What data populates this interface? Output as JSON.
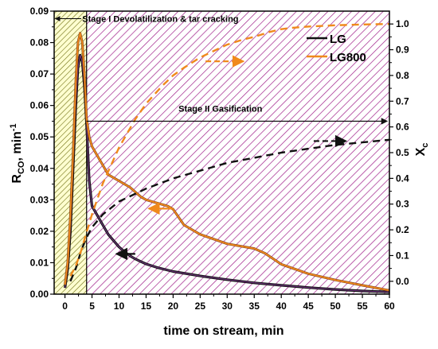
{
  "chart_data": {
    "type": "line",
    "xlabel": "time on stream, min",
    "ylabel_left": {
      "main": "R",
      "sub": "CO",
      "tail": ", min",
      "sup": "-1"
    },
    "ylabel_right": {
      "main": "X",
      "sub": "c"
    },
    "xlim": [
      -2,
      60
    ],
    "ylim_left": [
      0,
      0.09
    ],
    "ylim_right": [
      -0.05,
      1.05
    ],
    "x_ticks": [
      0,
      5,
      10,
      15,
      20,
      25,
      30,
      35,
      40,
      45,
      50,
      55,
      60
    ],
    "x_tick_labels": [
      "0",
      "5",
      "10",
      "15",
      "20",
      "25",
      "30",
      "35",
      "40",
      "45",
      "50",
      "55",
      "60"
    ],
    "y_left_ticks": [
      0,
      0.01,
      0.02,
      0.03,
      0.04,
      0.05,
      0.06,
      0.07,
      0.08,
      0.09
    ],
    "y_left_tick_labels": [
      "0.00",
      "0.01",
      "0.02",
      "0.03",
      "0.04",
      "0.05",
      "0.06",
      "0.07",
      "0.08",
      "0.09"
    ],
    "y_right_ticks": [
      0,
      0.1,
      0.2,
      0.3,
      0.4,
      0.5,
      0.6,
      0.7,
      0.8,
      0.9,
      1.0
    ],
    "y_right_tick_labels": [
      "0.0",
      "0.1",
      "0.2",
      "0.3",
      "0.4",
      "0.5",
      "0.6",
      "0.7",
      "0.8",
      "0.9",
      "1.0"
    ],
    "grid": false,
    "legend_position": "top-right",
    "regions": [
      {
        "name": "Stage I",
        "x_start": -2,
        "x_end": 4,
        "color": "#7a7a1e"
      },
      {
        "name": "Stage II",
        "x_start": 4,
        "x_end": 60,
        "color": "#a0208a"
      }
    ],
    "annotations": [
      {
        "text": "Stage I Devolatilization & tar cracking",
        "x": 3.2,
        "y_left": 0.0876,
        "arrow_from_x": 3.0,
        "arrow_to_x": -1.8
      },
      {
        "text": "Stage II Gasification",
        "x": 21,
        "y_left": 0.0565,
        "line_from_x": 4,
        "line_to_x": 59.6
      }
    ],
    "series": [
      {
        "name": "LG",
        "axis": "left",
        "style": "solid",
        "color": "#111111",
        "x": [
          0,
          0.5,
          1,
          1.5,
          2,
          2.4,
          2.8,
          3.2,
          3.6,
          4,
          4.5,
          5,
          6,
          7,
          8,
          9,
          10,
          11,
          12,
          13,
          14,
          15,
          17,
          20,
          25,
          30,
          35,
          40,
          45,
          50,
          55,
          60
        ],
        "y": [
          0.002,
          0.008,
          0.02,
          0.04,
          0.06,
          0.072,
          0.076,
          0.074,
          0.066,
          0.054,
          0.036,
          0.028,
          0.025,
          0.022,
          0.019,
          0.017,
          0.015,
          0.0135,
          0.0122,
          0.0112,
          0.0104,
          0.0096,
          0.0085,
          0.0072,
          0.0058,
          0.0046,
          0.0036,
          0.0028,
          0.0021,
          0.0015,
          0.001,
          0.0007
        ]
      },
      {
        "name": "LG800",
        "axis": "left",
        "style": "solid",
        "color": "#f08a1c",
        "x": [
          0,
          0.5,
          1,
          1.5,
          2,
          2.4,
          2.8,
          3.2,
          3.6,
          4,
          4.5,
          5,
          6,
          7,
          8,
          10,
          12,
          14,
          15,
          17,
          19,
          20,
          22,
          25,
          30,
          35,
          37,
          40,
          45,
          50,
          55,
          60
        ],
        "y": [
          0.003,
          0.01,
          0.025,
          0.045,
          0.068,
          0.08,
          0.083,
          0.08,
          0.07,
          0.056,
          0.05,
          0.047,
          0.044,
          0.041,
          0.038,
          0.036,
          0.034,
          0.031,
          0.03,
          0.029,
          0.028,
          0.027,
          0.022,
          0.019,
          0.016,
          0.0145,
          0.013,
          0.0095,
          0.0065,
          0.0045,
          0.0028,
          0.0012
        ]
      },
      {
        "name": "",
        "axis": "right",
        "style": "dashed",
        "color": "#111111",
        "x": [
          1,
          2,
          3,
          4,
          5,
          7,
          10,
          15,
          20,
          25,
          30,
          35,
          40,
          45,
          50,
          55,
          60
        ],
        "y": [
          0.0,
          0.05,
          0.12,
          0.17,
          0.21,
          0.26,
          0.31,
          0.36,
          0.4,
          0.43,
          0.46,
          0.48,
          0.5,
          0.515,
          0.53,
          0.54,
          0.55
        ]
      },
      {
        "name": "",
        "axis": "right",
        "style": "dashed",
        "color": "#f08a1c",
        "x": [
          1,
          2,
          3,
          4,
          5,
          7,
          10,
          13,
          15,
          18,
          20,
          22,
          25,
          28,
          30,
          33,
          35,
          38,
          40,
          42,
          45,
          50,
          55,
          60
        ],
        "y": [
          0.02,
          0.06,
          0.12,
          0.19,
          0.26,
          0.38,
          0.52,
          0.63,
          0.69,
          0.76,
          0.8,
          0.83,
          0.87,
          0.9,
          0.92,
          0.94,
          0.95,
          0.97,
          0.98,
          0.985,
          0.99,
          0.995,
          0.998,
          1.0
        ]
      }
    ],
    "direction_arrows": [
      {
        "series": "LG",
        "axis": "left",
        "x_from": 13,
        "x_to": 9.5,
        "y": 0.0128,
        "color": "#111111"
      },
      {
        "series": "LG800",
        "axis": "left",
        "x_from": 20,
        "x_to": 15.5,
        "y": 0.0272,
        "color": "#f08a1c"
      },
      {
        "series": "Xc-LG",
        "axis": "right",
        "x_from": 46,
        "x_to": 52,
        "y": 0.545,
        "color": "#111111"
      },
      {
        "series": "Xc-LG800",
        "axis": "right",
        "x_from": 26,
        "x_to": 33,
        "y": 0.855,
        "color": "#f08a1c"
      }
    ]
  }
}
